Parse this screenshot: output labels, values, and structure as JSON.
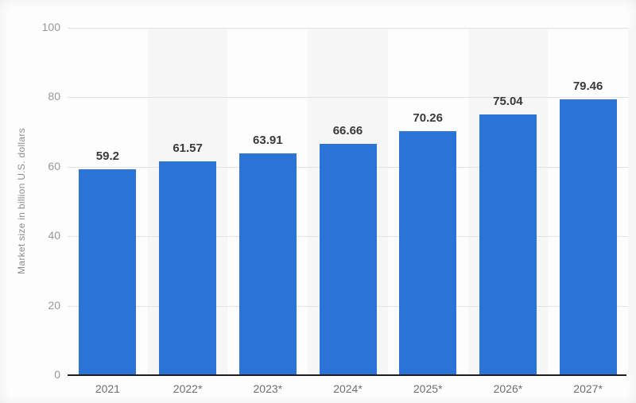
{
  "chart_data": {
    "type": "bar",
    "title": "",
    "xlabel": "",
    "ylabel": "Market size in billion U.S. dollars",
    "categories": [
      "2021",
      "2022*",
      "2023*",
      "2024*",
      "2025*",
      "2026*",
      "2027*"
    ],
    "values": [
      59.2,
      61.57,
      63.91,
      66.66,
      70.26,
      75.04,
      79.46
    ],
    "value_labels": [
      "59.2",
      "61.57",
      "63.91",
      "66.66",
      "70.26",
      "75.04",
      "79.46"
    ],
    "ylim": [
      0,
      100
    ],
    "yticks": [
      0,
      20,
      40,
      60,
      80,
      100
    ],
    "grid": true,
    "legend": false,
    "bar_color": "#2c73d8",
    "band_color": "#f6f6f6",
    "banded_category_indexes": [
      1,
      3,
      5
    ],
    "right_edge_band": true
  }
}
